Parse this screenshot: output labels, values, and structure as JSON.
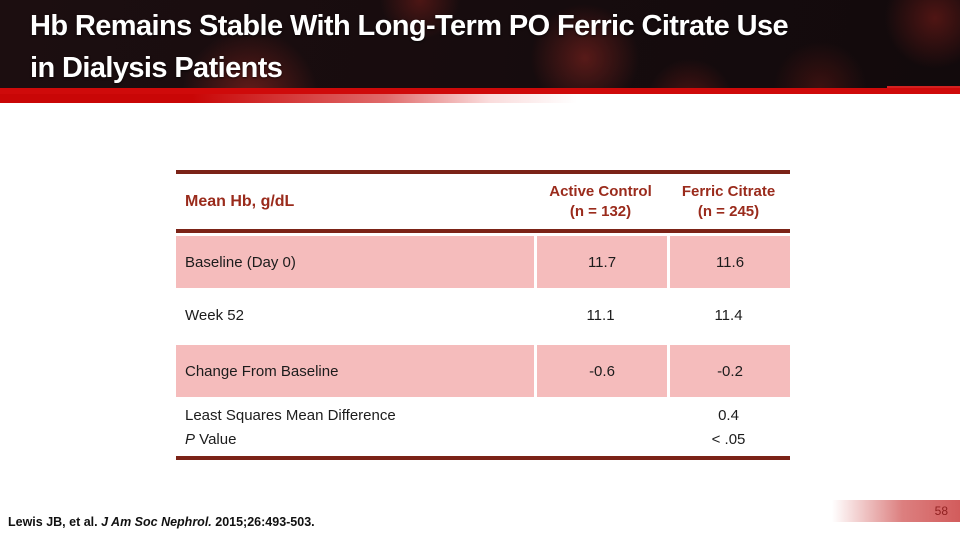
{
  "colors": {
    "accent-red": "#cf0a0a",
    "dark-maroon": "#7b2317",
    "header-text": "#9a2b1c",
    "row-pink": "#f5bcbc",
    "page-red": "#d25c5c",
    "page-number-text": "#8f1f1f"
  },
  "title": {
    "line1": "Hb Remains Stable With Long-Term PO Ferric Citrate Use",
    "line2": "in Dialysis Patients"
  },
  "table": {
    "row_header_label": "Mean Hb, g/dL",
    "columns": [
      {
        "name_line1": "Active Control",
        "name_line2": "(n = 132)"
      },
      {
        "name_line1": "Ferric Citrate",
        "name_line2": "(n = 245)"
      }
    ],
    "rows": [
      {
        "label": "Baseline (Day 0)",
        "active_control": "11.7",
        "ferric_citrate": "11.6"
      },
      {
        "label": "Week 52",
        "active_control": "11.1",
        "ferric_citrate": "11.4"
      },
      {
        "label": "Change From Baseline",
        "active_control": "-0.6",
        "ferric_citrate": "-0.2"
      },
      {
        "label_line1": "Least Squares Mean Difference",
        "label_line2_prefix": "P",
        "label_line2_suffix": " Value",
        "value_line1": "0.4",
        "value_line2": "< .05"
      }
    ]
  },
  "footer": {
    "citation_prefix": "Lewis JB, et al. ",
    "citation_journal": "J Am Soc Nephrol. ",
    "citation_suffix": "2015;26:493-503."
  },
  "page_number": "58"
}
